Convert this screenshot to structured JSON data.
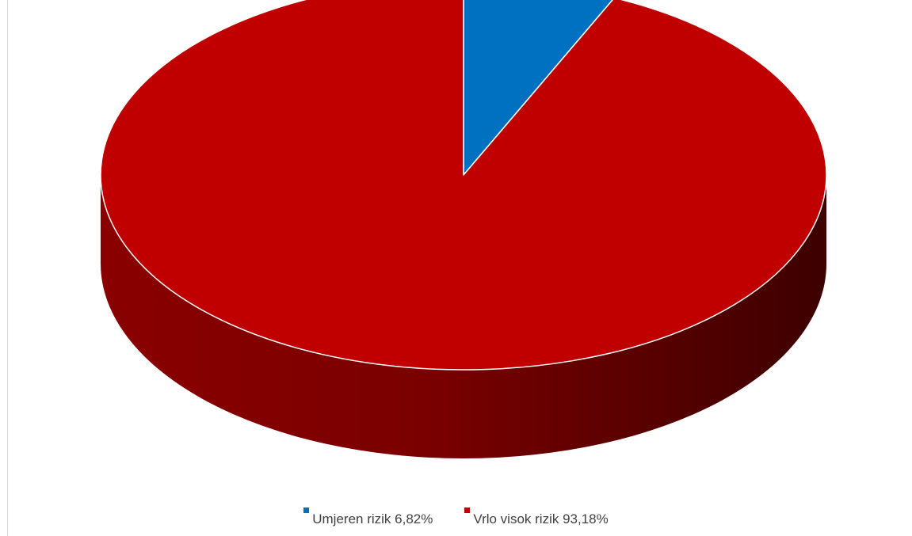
{
  "chart_data": {
    "type": "pie",
    "style": "3d",
    "slices": [
      {
        "label": "Umjeren rizik",
        "value": 6.82,
        "value_label": "6,82%",
        "color": "#0070c0"
      },
      {
        "label": "Vrlo visok rizik",
        "value": 93.18,
        "value_label": "93,18%",
        "color": "#c00000"
      }
    ],
    "legend": {
      "position": "bottom"
    }
  }
}
